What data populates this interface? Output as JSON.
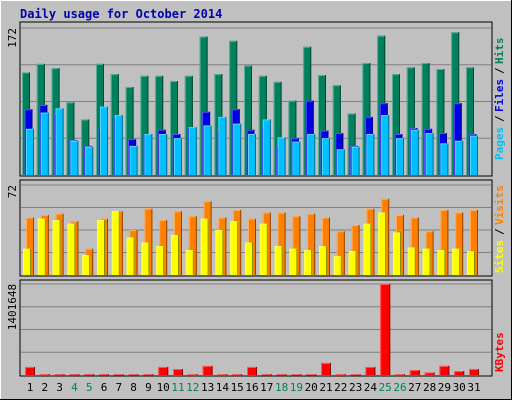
{
  "title": "Daily usage for October 2014",
  "colors": {
    "background": "#c0c0c0",
    "title": "#0000b0",
    "hits": "#00805c",
    "files": "#0000e6",
    "pages": "#00c0ff",
    "visits": "#ff8000",
    "sites": "#ffff00",
    "kbytes": "#ff0000",
    "weekend_label": "#00805c"
  },
  "chart_data": [
    {
      "type": "bar",
      "title": "Daily usage for October 2014",
      "axis_max_label": "172",
      "ylim": [
        0,
        172
      ],
      "legend": [
        "Hits",
        "Files",
        "Pages"
      ],
      "legend_separator": "/",
      "categories": [
        "1",
        "2",
        "3",
        "4",
        "5",
        "6",
        "7",
        "8",
        "9",
        "10",
        "11",
        "12",
        "13",
        "14",
        "15",
        "16",
        "17",
        "18",
        "19",
        "20",
        "21",
        "22",
        "23",
        "24",
        "25",
        "26",
        "27",
        "28",
        "29",
        "30",
        "31"
      ],
      "series": [
        {
          "name": "Hits",
          "values": [
            120,
            130,
            125,
            85,
            65,
            130,
            118,
            103,
            116,
            116,
            110,
            116,
            162,
            118,
            157,
            128,
            116,
            109,
            87,
            150,
            117,
            105,
            72,
            131,
            163,
            118,
            126,
            131,
            124,
            167,
            126
          ]
        },
        {
          "name": "Files",
          "values": [
            77,
            82,
            72,
            41,
            34,
            54,
            68,
            42,
            48,
            53,
            48,
            56,
            74,
            52,
            77,
            53,
            57,
            33,
            43,
            87,
            52,
            49,
            34,
            68,
            84,
            48,
            55,
            54,
            49,
            84,
            48
          ]
        },
        {
          "name": "Pages",
          "values": [
            54,
            73,
            78,
            40,
            33,
            80,
            70,
            34,
            48,
            48,
            43,
            56,
            58,
            68,
            60,
            48,
            65,
            44,
            39,
            48,
            43,
            30,
            33,
            48,
            70,
            43,
            53,
            49,
            37,
            40,
            46
          ]
        }
      ]
    },
    {
      "type": "bar",
      "axis_max_label": "72",
      "ylim": [
        0,
        72
      ],
      "legend": [
        "Visits",
        "Sites"
      ],
      "legend_separator": "/",
      "categories": [
        "1",
        "2",
        "3",
        "4",
        "5",
        "6",
        "7",
        "8",
        "9",
        "10",
        "11",
        "12",
        "13",
        "14",
        "15",
        "16",
        "17",
        "18",
        "19",
        "20",
        "21",
        "22",
        "23",
        "24",
        "25",
        "26",
        "27",
        "28",
        "29",
        "30",
        "31"
      ],
      "series": [
        {
          "name": "Visits",
          "values": [
            46,
            48,
            49,
            43,
            21,
            45,
            51,
            36,
            53,
            44,
            51,
            47,
            59,
            46,
            52,
            45,
            50,
            50,
            47,
            49,
            46,
            35,
            40,
            53,
            61,
            48,
            46,
            35,
            52,
            50,
            52
          ]
        },
        {
          "name": "Sites",
          "values": [
            21,
            45,
            44,
            41,
            16,
            44,
            51,
            30,
            26,
            23,
            32,
            20,
            45,
            36,
            43,
            26,
            41,
            23,
            21,
            20,
            23,
            15,
            19,
            41,
            50,
            34,
            22,
            21,
            20,
            21,
            19
          ]
        }
      ]
    },
    {
      "type": "bar",
      "axis_max_label": "1401648",
      "ylim": [
        0,
        1401648
      ],
      "legend": [
        "KBytes"
      ],
      "categories": [
        "1",
        "2",
        "3",
        "4",
        "5",
        "6",
        "7",
        "8",
        "9",
        "10",
        "11",
        "12",
        "13",
        "14",
        "15",
        "16",
        "17",
        "18",
        "19",
        "20",
        "21",
        "22",
        "23",
        "24",
        "25",
        "26",
        "27",
        "28",
        "29",
        "30",
        "31"
      ],
      "weekend_days": [
        "4",
        "5",
        "11",
        "12",
        "18",
        "19",
        "25",
        "26"
      ],
      "series": [
        {
          "name": "KBytes",
          "values": [
            124000,
            15000,
            14000,
            13000,
            12000,
            12000,
            11000,
            11000,
            12000,
            124000,
            92000,
            15000,
            140000,
            15000,
            14000,
            124000,
            12000,
            12000,
            11000,
            11000,
            186000,
            15000,
            11000,
            124000,
            1401648,
            15000,
            77000,
            39000,
            140000,
            61000,
            93000
          ]
        }
      ]
    }
  ]
}
